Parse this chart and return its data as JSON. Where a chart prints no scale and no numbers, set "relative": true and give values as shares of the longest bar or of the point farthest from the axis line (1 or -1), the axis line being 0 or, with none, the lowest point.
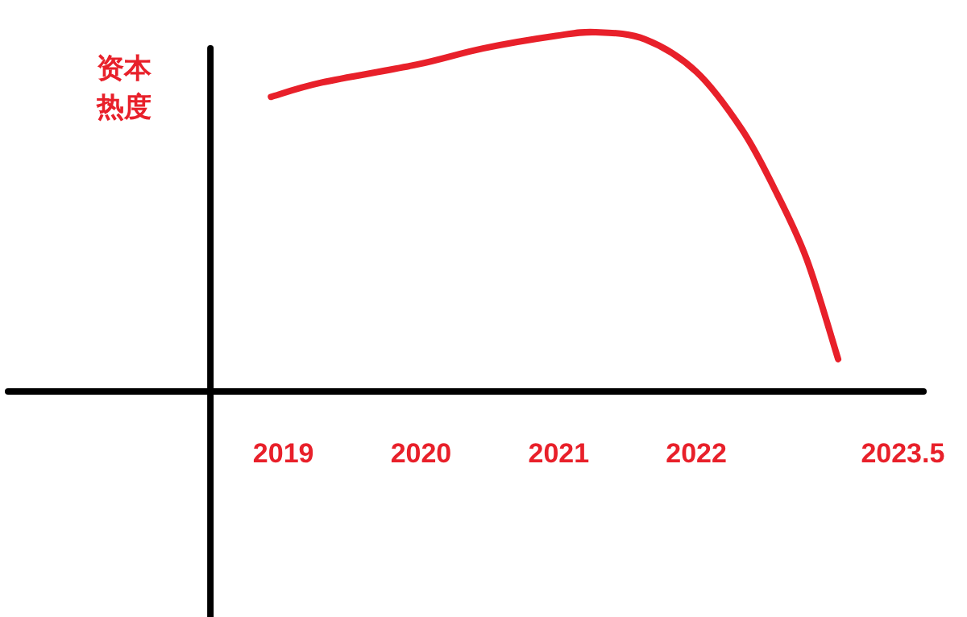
{
  "chart_data": {
    "type": "line",
    "relative": true,
    "ylabel": "资本热度",
    "xlim": [
      2017.0,
      2023.65
    ],
    "xticks": [
      2019,
      2020,
      2021,
      2022,
      2023.5
    ],
    "grid": false,
    "marker": "none",
    "line_style": "solid",
    "ref_lines": [
      {
        "axis": "x",
        "value": 2018.47,
        "color": "#000000"
      }
    ],
    "series": [
      {
        "color": "#e8202a",
        "x": [
          2018.91,
          2019.28,
          2019.97,
          2020.45,
          2020.98,
          2021.27,
          2021.63,
          2022.0,
          2022.33,
          2022.56,
          2022.8,
          2023.03
        ],
        "values": [
          0.82,
          0.86,
          0.91,
          0.955,
          0.99,
          1,
          0.98,
          0.89,
          0.73,
          0.57,
          0.37,
          0.09
        ]
      }
    ]
  }
}
